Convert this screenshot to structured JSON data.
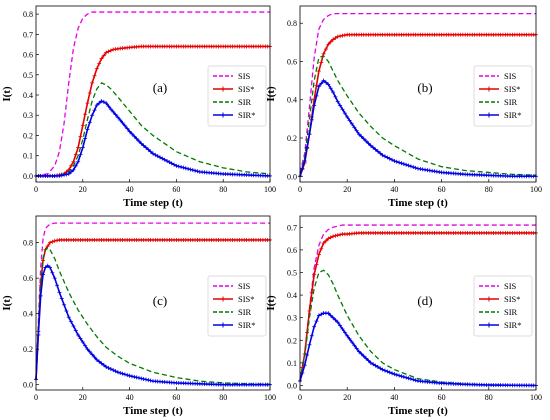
{
  "colors": {
    "SIS": "#e600e6",
    "SIS*": "#e60000",
    "SIR": "#007a00",
    "SIR*": "#0000e6"
  },
  "chart_data": [
    {
      "type": "line",
      "panel": "(a)",
      "xlabel": "Time step (t)",
      "ylabel": "I(t)",
      "xlim": [
        0,
        100
      ],
      "ylim": [
        -0.03,
        0.84
      ],
      "xticks": [
        0,
        20,
        40,
        60,
        80,
        100
      ],
      "yticks": [
        0.0,
        0.1,
        0.2,
        0.3,
        0.4,
        0.5,
        0.6,
        0.7,
        0.8
      ],
      "legend": [
        "SIS",
        "SIS*",
        "SIR",
        "SIR*"
      ],
      "legend_position": "right",
      "series": [
        {
          "name": "SIS",
          "style": "dashed",
          "x": [
            0,
            5,
            8,
            10,
            12,
            14,
            16,
            18,
            20,
            22,
            24,
            26,
            28,
            30,
            35,
            100
          ],
          "y": [
            0.0,
            0.01,
            0.05,
            0.12,
            0.26,
            0.46,
            0.63,
            0.73,
            0.78,
            0.8,
            0.81,
            0.81,
            0.81,
            0.81,
            0.81,
            0.81
          ]
        },
        {
          "name": "SIS*",
          "style": "solid-marker",
          "x": [
            0,
            8,
            12,
            14,
            16,
            18,
            20,
            22,
            24,
            26,
            28,
            30,
            33,
            36,
            40,
            45,
            50,
            100
          ],
          "y": [
            0.0,
            0.0,
            0.01,
            0.03,
            0.07,
            0.14,
            0.25,
            0.36,
            0.46,
            0.53,
            0.58,
            0.61,
            0.625,
            0.63,
            0.635,
            0.64,
            0.64,
            0.64
          ]
        },
        {
          "name": "SIR",
          "style": "dashed",
          "x": [
            0,
            8,
            12,
            14,
            16,
            18,
            20,
            22,
            24,
            26,
            28,
            30,
            32,
            35,
            40,
            45,
            50,
            60,
            70,
            80,
            90,
            100
          ],
          "y": [
            0.0,
            0.0,
            0.01,
            0.02,
            0.05,
            0.1,
            0.18,
            0.28,
            0.37,
            0.43,
            0.46,
            0.45,
            0.43,
            0.39,
            0.32,
            0.25,
            0.2,
            0.12,
            0.07,
            0.04,
            0.02,
            0.01
          ]
        },
        {
          "name": "SIR*",
          "style": "solid-marker",
          "x": [
            0,
            10,
            14,
            16,
            18,
            20,
            22,
            24,
            26,
            28,
            30,
            32,
            35,
            40,
            45,
            50,
            60,
            70,
            80,
            90,
            100
          ],
          "y": [
            0.0,
            0.0,
            0.01,
            0.03,
            0.07,
            0.14,
            0.23,
            0.3,
            0.35,
            0.37,
            0.36,
            0.33,
            0.29,
            0.22,
            0.16,
            0.11,
            0.05,
            0.02,
            0.01,
            0.005,
            0.0
          ]
        }
      ]
    },
    {
      "type": "line",
      "panel": "(b)",
      "xlabel": "Time step (t)",
      "ylabel": "I(t)",
      "xlim": [
        0,
        100
      ],
      "ylim": [
        -0.03,
        0.89
      ],
      "xticks": [
        0,
        20,
        40,
        60,
        80,
        100
      ],
      "yticks": [
        0.0,
        0.2,
        0.4,
        0.6,
        0.8
      ],
      "legend": [
        "SIS",
        "SIS*",
        "SIR",
        "SIR*"
      ],
      "legend_position": "right",
      "series": [
        {
          "name": "SIS",
          "style": "dashed",
          "x": [
            0,
            2,
            4,
            6,
            8,
            10,
            12,
            14,
            16,
            20,
            100
          ],
          "y": [
            0.02,
            0.12,
            0.36,
            0.62,
            0.77,
            0.82,
            0.84,
            0.85,
            0.85,
            0.85,
            0.85
          ]
        },
        {
          "name": "SIS*",
          "style": "solid-marker",
          "x": [
            0,
            2,
            4,
            6,
            8,
            10,
            12,
            14,
            16,
            18,
            20,
            25,
            30,
            100
          ],
          "y": [
            0.0,
            0.07,
            0.22,
            0.4,
            0.55,
            0.64,
            0.69,
            0.715,
            0.73,
            0.735,
            0.74,
            0.74,
            0.74,
            0.74
          ]
        },
        {
          "name": "SIR",
          "style": "dashed",
          "x": [
            0,
            2,
            4,
            6,
            8,
            10,
            12,
            14,
            16,
            20,
            25,
            30,
            35,
            40,
            50,
            60,
            70,
            80,
            90,
            100
          ],
          "y": [
            0.01,
            0.1,
            0.3,
            0.5,
            0.62,
            0.63,
            0.6,
            0.55,
            0.5,
            0.42,
            0.33,
            0.26,
            0.2,
            0.16,
            0.09,
            0.05,
            0.03,
            0.02,
            0.01,
            0.005
          ]
        },
        {
          "name": "SIR*",
          "style": "solid-marker",
          "x": [
            0,
            2,
            4,
            6,
            8,
            10,
            12,
            14,
            16,
            20,
            25,
            30,
            35,
            40,
            50,
            60,
            70,
            80,
            90,
            100
          ],
          "y": [
            0.0,
            0.08,
            0.22,
            0.37,
            0.47,
            0.5,
            0.48,
            0.44,
            0.39,
            0.31,
            0.22,
            0.16,
            0.11,
            0.08,
            0.04,
            0.02,
            0.01,
            0.005,
            0.0,
            0.0
          ]
        }
      ]
    },
    {
      "type": "line",
      "panel": "(c)",
      "xlabel": "Time step (t)",
      "ylabel": "I(t)",
      "xlim": [
        0,
        100
      ],
      "ylim": [
        -0.03,
        0.95
      ],
      "xticks": [
        0,
        20,
        40,
        60,
        80,
        100
      ],
      "yticks": [
        0.0,
        0.2,
        0.4,
        0.6,
        0.8
      ],
      "legend": [
        "SIS",
        "SIS*",
        "SIR",
        "SIR*"
      ],
      "legend_position": "right",
      "series": [
        {
          "name": "SIS",
          "style": "dashed",
          "x": [
            0,
            1,
            2,
            3,
            4,
            6,
            8,
            10,
            14,
            100
          ],
          "y": [
            0.03,
            0.35,
            0.66,
            0.82,
            0.88,
            0.905,
            0.91,
            0.91,
            0.91,
            0.91
          ]
        },
        {
          "name": "SIS*",
          "style": "solid-marker",
          "x": [
            0,
            1,
            2,
            3,
            4,
            6,
            8,
            10,
            14,
            18,
            100
          ],
          "y": [
            0.03,
            0.3,
            0.56,
            0.7,
            0.76,
            0.8,
            0.81,
            0.815,
            0.815,
            0.815,
            0.815
          ]
        },
        {
          "name": "SIR",
          "style": "dashed",
          "x": [
            0,
            1,
            2,
            3,
            4,
            5,
            6,
            8,
            10,
            14,
            18,
            22,
            26,
            30,
            35,
            40,
            50,
            60,
            70,
            80,
            90,
            100
          ],
          "y": [
            0.03,
            0.32,
            0.58,
            0.71,
            0.76,
            0.77,
            0.76,
            0.71,
            0.64,
            0.52,
            0.42,
            0.34,
            0.27,
            0.21,
            0.16,
            0.12,
            0.07,
            0.04,
            0.02,
            0.01,
            0.005,
            0.002
          ]
        },
        {
          "name": "SIR*",
          "style": "solid-marker",
          "x": [
            0,
            1,
            2,
            3,
            4,
            5,
            6,
            8,
            10,
            14,
            18,
            22,
            26,
            30,
            35,
            40,
            50,
            60,
            70,
            80,
            90,
            100
          ],
          "y": [
            0.03,
            0.28,
            0.5,
            0.62,
            0.66,
            0.67,
            0.66,
            0.6,
            0.52,
            0.38,
            0.28,
            0.2,
            0.14,
            0.1,
            0.07,
            0.05,
            0.02,
            0.01,
            0.005,
            0.0,
            0.0,
            0.0
          ]
        }
      ]
    },
    {
      "type": "line",
      "panel": "(d)",
      "xlabel": "Time step (t)",
      "ylabel": "I(t)",
      "xlim": [
        0,
        100
      ],
      "ylim": [
        -0.02,
        0.75
      ],
      "xticks": [
        0,
        20,
        40,
        60,
        80,
        100
      ],
      "yticks": [
        0.0,
        0.1,
        0.2,
        0.3,
        0.4,
        0.5,
        0.6,
        0.7
      ],
      "legend": [
        "SIS",
        "SIS*",
        "SIR",
        "SIR*"
      ],
      "legend_position": "right",
      "series": [
        {
          "name": "SIS",
          "style": "dashed",
          "x": [
            0,
            2,
            4,
            6,
            8,
            10,
            12,
            14,
            16,
            18,
            20,
            25,
            100
          ],
          "y": [
            0.02,
            0.14,
            0.34,
            0.52,
            0.62,
            0.67,
            0.69,
            0.7,
            0.705,
            0.71,
            0.71,
            0.71,
            0.71
          ]
        },
        {
          "name": "SIS*",
          "style": "solid-marker",
          "x": [
            0,
            2,
            4,
            6,
            8,
            10,
            12,
            14,
            16,
            18,
            20,
            25,
            30,
            100
          ],
          "y": [
            0.02,
            0.14,
            0.33,
            0.49,
            0.58,
            0.63,
            0.65,
            0.66,
            0.665,
            0.67,
            0.67,
            0.675,
            0.675,
            0.675
          ]
        },
        {
          "name": "SIR",
          "style": "dashed",
          "x": [
            0,
            2,
            4,
            6,
            8,
            10,
            12,
            14,
            16,
            20,
            25,
            30,
            35,
            40,
            50,
            60,
            70,
            80,
            90,
            100
          ],
          "y": [
            0.02,
            0.13,
            0.3,
            0.43,
            0.5,
            0.51,
            0.49,
            0.45,
            0.4,
            0.31,
            0.22,
            0.15,
            0.1,
            0.07,
            0.03,
            0.015,
            0.007,
            0.003,
            0.001,
            0.0
          ]
        },
        {
          "name": "SIR*",
          "style": "solid-marker",
          "x": [
            0,
            2,
            4,
            6,
            8,
            10,
            12,
            14,
            16,
            20,
            25,
            30,
            35,
            40,
            50,
            60,
            70,
            80,
            90,
            100
          ],
          "y": [
            0.02,
            0.09,
            0.18,
            0.26,
            0.31,
            0.32,
            0.32,
            0.3,
            0.28,
            0.22,
            0.15,
            0.1,
            0.07,
            0.05,
            0.02,
            0.01,
            0.005,
            0.002,
            0.001,
            0.0
          ]
        }
      ]
    }
  ]
}
